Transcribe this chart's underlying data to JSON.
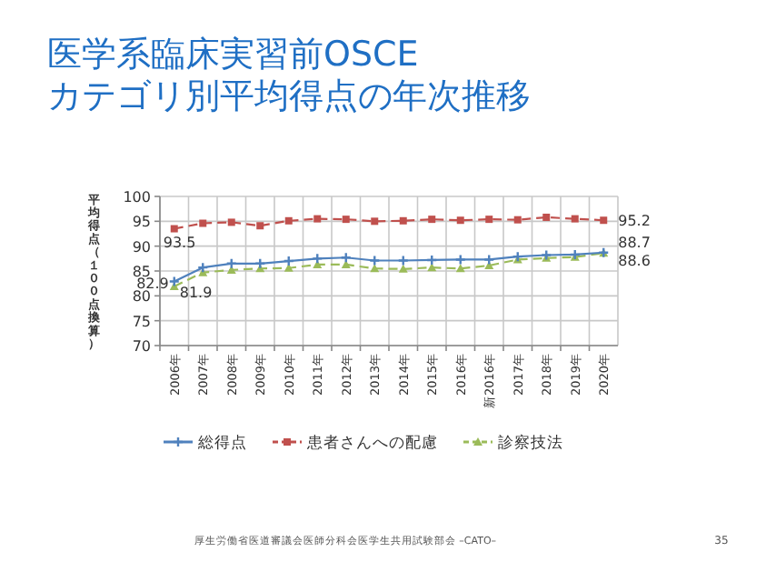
{
  "chart_data": {
    "type": "line",
    "title": "医学系臨床実習前OSCE\nカテゴリ別平均得点の年次推移",
    "ylabel": "平均得点（１００点換算）",
    "categories": [
      "2006年",
      "2007年",
      "2008年",
      "2009年",
      "2010年",
      "2011年",
      "2012年",
      "2013年",
      "2014年",
      "2015年",
      "2016年",
      "新2016年",
      "2017年",
      "2018年",
      "2019年",
      "2020年"
    ],
    "series": [
      {
        "name": "総得点",
        "color": "#4f81bd",
        "marker": "cross",
        "line_style": "solid",
        "values": [
          82.9,
          85.7,
          86.5,
          86.5,
          87.0,
          87.5,
          87.7,
          87.1,
          87.1,
          87.2,
          87.3,
          87.3,
          87.9,
          88.2,
          88.3,
          88.7
        ],
        "value_labels": [
          "82.9",
          null,
          null,
          null,
          null,
          null,
          null,
          null,
          null,
          null,
          null,
          null,
          null,
          null,
          null,
          "88.7"
        ]
      },
      {
        "name": "患者さんへの配慮",
        "color": "#c0504d",
        "marker": "square",
        "line_style": "dashed",
        "values": [
          93.5,
          94.6,
          94.8,
          94.1,
          95.1,
          95.5,
          95.4,
          95.0,
          95.1,
          95.4,
          95.2,
          95.4,
          95.3,
          95.8,
          95.5,
          95.2
        ],
        "value_labels": [
          "93.5",
          null,
          null,
          null,
          null,
          null,
          null,
          null,
          null,
          null,
          null,
          null,
          null,
          null,
          null,
          "95.2"
        ]
      },
      {
        "name": "診察技法",
        "color": "#9bbb59",
        "marker": "triangle",
        "line_style": "dashed",
        "values": [
          81.9,
          84.7,
          85.2,
          85.5,
          85.6,
          86.3,
          86.3,
          85.5,
          85.4,
          85.7,
          85.5,
          86.1,
          87.3,
          87.6,
          87.8,
          88.6
        ],
        "value_labels": [
          "81.9",
          null,
          null,
          null,
          null,
          null,
          null,
          null,
          null,
          null,
          null,
          null,
          null,
          null,
          null,
          "88.6"
        ]
      }
    ],
    "ylim": [
      70,
      100
    ],
    "yticks": [
      70,
      75,
      80,
      85,
      90,
      95,
      100
    ],
    "grid": true,
    "legend": "bottom",
    "annotations": [
      "厚生労働省医道審議会医師分科会医学生共用試験部会 –CATO–",
      "35"
    ]
  }
}
